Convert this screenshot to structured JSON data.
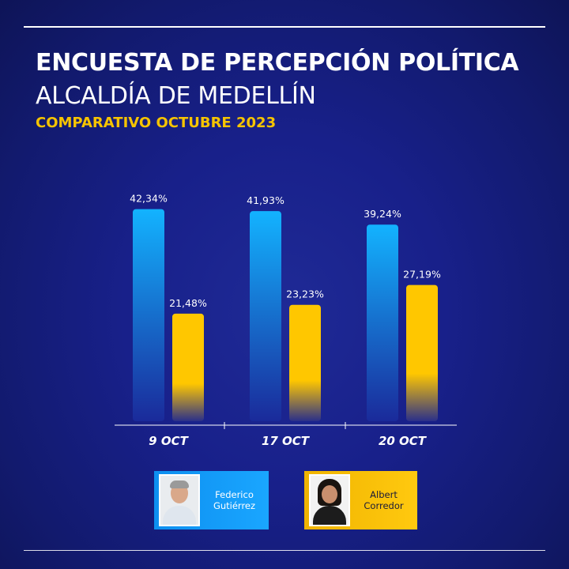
{
  "header": {
    "title": "ENCUESTA DE PERCEPCIÓN POLÍTICA",
    "subtitle": "ALCALDÍA DE MEDELLÍN",
    "tagline": "COMPARATIVO OCTUBRE 2023"
  },
  "legend": {
    "items": [
      {
        "label": "Federico\nGutiérrez",
        "color": "#1aa6ff"
      },
      {
        "label": "Albert\nCorredor",
        "color": "#ffc90f"
      }
    ]
  },
  "colors": {
    "series1_top": "#13b3ff",
    "series1_bottom": "#1a2a9a",
    "series2_top": "#ffc700",
    "series2_bottom": "#2a2f8a",
    "accent": "#f6c400"
  },
  "chart_data": {
    "type": "bar",
    "categories": [
      "9 OCT",
      "17 OCT",
      "20 OCT"
    ],
    "series": [
      {
        "name": "Federico Gutiérrez",
        "values": [
          42.34,
          41.93,
          39.24
        ],
        "labels": [
          "42,34%",
          "41,93%",
          "39,24%"
        ]
      },
      {
        "name": "Albert Corredor",
        "values": [
          21.48,
          23.23,
          27.19
        ],
        "labels": [
          "21,48%",
          "23,23%",
          "27,19%"
        ]
      }
    ],
    "ylim": [
      0,
      50
    ],
    "grid": false
  }
}
